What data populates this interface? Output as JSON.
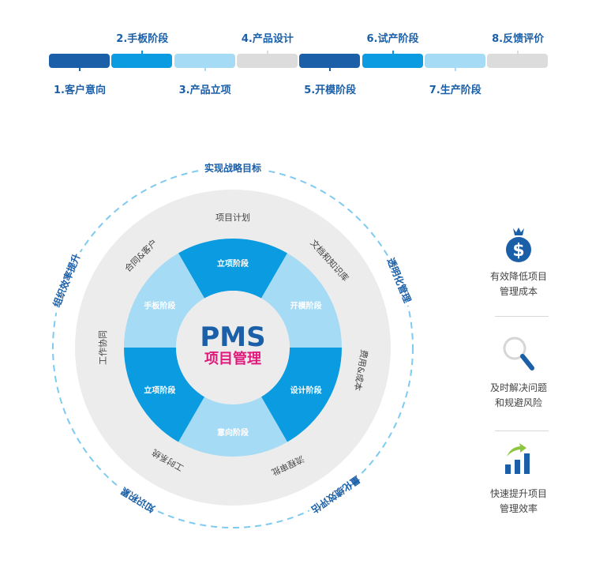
{
  "timeline": {
    "stages": [
      {
        "label": "1.客户意向",
        "color": "#1a5fa8"
      },
      {
        "label": "2.手板阶段",
        "color": "#0a9be0"
      },
      {
        "label": "3.产品立项",
        "color": "#a6dbf5"
      },
      {
        "label": "4.产品设计",
        "color": "#dcdcdc"
      },
      {
        "label": "5.开模阶段",
        "color": "#1a5fa8"
      },
      {
        "label": "6.试产阶段",
        "color": "#0a9be0"
      },
      {
        "label": "7.生产阶段",
        "color": "#a6dbf5"
      },
      {
        "label": "8.反馈评价",
        "color": "#dcdcdc"
      }
    ]
  },
  "wheel": {
    "center": {
      "title": "PMS",
      "subtitle": "项目管理",
      "title_color": "#1a5fa8",
      "subtitle_color": "#e0197d"
    },
    "segments": [
      {
        "label": "立项阶段",
        "color": "#0a9be0"
      },
      {
        "label": "开模阶段",
        "color": "#a6dbf5"
      },
      {
        "label": "设计阶段",
        "color": "#0a9be0"
      },
      {
        "label": "意向阶段",
        "color": "#a6dbf5"
      },
      {
        "label": "立项阶段",
        "color": "#0a9be0"
      },
      {
        "label": "手板阶段",
        "color": "#a6dbf5"
      }
    ],
    "ring_labels": [
      "项目计划",
      "文档和知识库",
      "费用&成本",
      "流程审批",
      "工时系统",
      "工作协同",
      "合同&客户"
    ],
    "outer_labels": [
      "实现战略目标",
      "透明化管理",
      "量化绩效评估",
      "知识积累",
      "组织效率提升"
    ]
  },
  "benefits": [
    {
      "icon": "money-bag-icon",
      "line1": "有效降低项目",
      "line2": "管理成本"
    },
    {
      "icon": "magnifier-icon",
      "line1": "及时解决问题",
      "line2": "和规避风险"
    },
    {
      "icon": "bar-chart-growth-icon",
      "line1": "快速提升项目",
      "line2": "管理效率"
    }
  ]
}
